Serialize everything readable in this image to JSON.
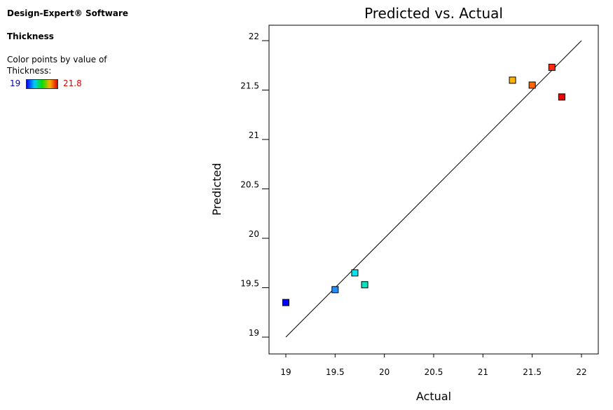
{
  "app": {
    "title": "Design-Expert® Software"
  },
  "response": {
    "name": "Thickness"
  },
  "color_legend": {
    "caption": "Color points by value of Thickness:",
    "min_label": "19",
    "max_label": "21.8",
    "min_color": "#0000cc",
    "max_color": "#e00000"
  },
  "chart_data": {
    "type": "scatter",
    "title": "Predicted vs. Actual",
    "xlabel": "Actual",
    "ylabel": "Predicted",
    "xlim": [
      19,
      22
    ],
    "ylim": [
      19,
      22
    ],
    "xticks": [
      "19",
      "19.5",
      "20",
      "20.5",
      "21",
      "21.5",
      "22"
    ],
    "yticks": [
      "19",
      "19.5",
      "20",
      "20.5",
      "21",
      "21.5",
      "22"
    ],
    "reference_line": {
      "from": [
        19,
        19
      ],
      "to": [
        22,
        22
      ]
    },
    "points": [
      {
        "x": 19.0,
        "y": 19.35,
        "color": "#0000ff"
      },
      {
        "x": 19.5,
        "y": 19.48,
        "color": "#1e90ff"
      },
      {
        "x": 19.7,
        "y": 19.65,
        "color": "#00e5ee"
      },
      {
        "x": 19.8,
        "y": 19.53,
        "color": "#00e5c0"
      },
      {
        "x": 21.3,
        "y": 21.6,
        "color": "#ffb000"
      },
      {
        "x": 21.5,
        "y": 21.55,
        "color": "#ff6a00"
      },
      {
        "x": 21.7,
        "y": 21.73,
        "color": "#ff2a10"
      },
      {
        "x": 21.8,
        "y": 21.43,
        "color": "#ee0000"
      }
    ]
  }
}
